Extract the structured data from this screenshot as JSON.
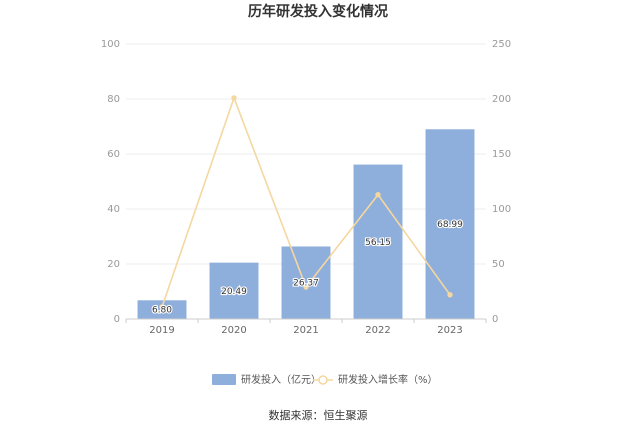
{
  "chart_data": {
    "type": "bar",
    "title": "历年研发投入变化情况",
    "categories": [
      "2019",
      "2020",
      "2021",
      "2022",
      "2023"
    ],
    "series": [
      {
        "name": "研发投入（亿元）",
        "type": "bar",
        "axis": "left",
        "values": [
          6.8,
          20.49,
          26.37,
          56.15,
          68.99
        ],
        "labels": [
          "6.80",
          "20.49",
          "26.37",
          "56.15",
          "68.99"
        ],
        "color": "#8eaedb"
      },
      {
        "name": "研发投入增长率（%）",
        "type": "line",
        "axis": "right",
        "values": [
          11,
          201,
          29,
          113,
          22
        ],
        "color": "#f5d7a0"
      }
    ],
    "y_left": {
      "min": 0,
      "max": 100,
      "ticks": [
        "0",
        "20",
        "40",
        "60",
        "80",
        "100"
      ]
    },
    "y_right": {
      "min": 0,
      "max": 250,
      "ticks": [
        "0",
        "50",
        "100",
        "150",
        "200",
        "250"
      ]
    },
    "grid": true,
    "legend_position": "bottom"
  },
  "source_text": "数据来源：恒生聚源"
}
